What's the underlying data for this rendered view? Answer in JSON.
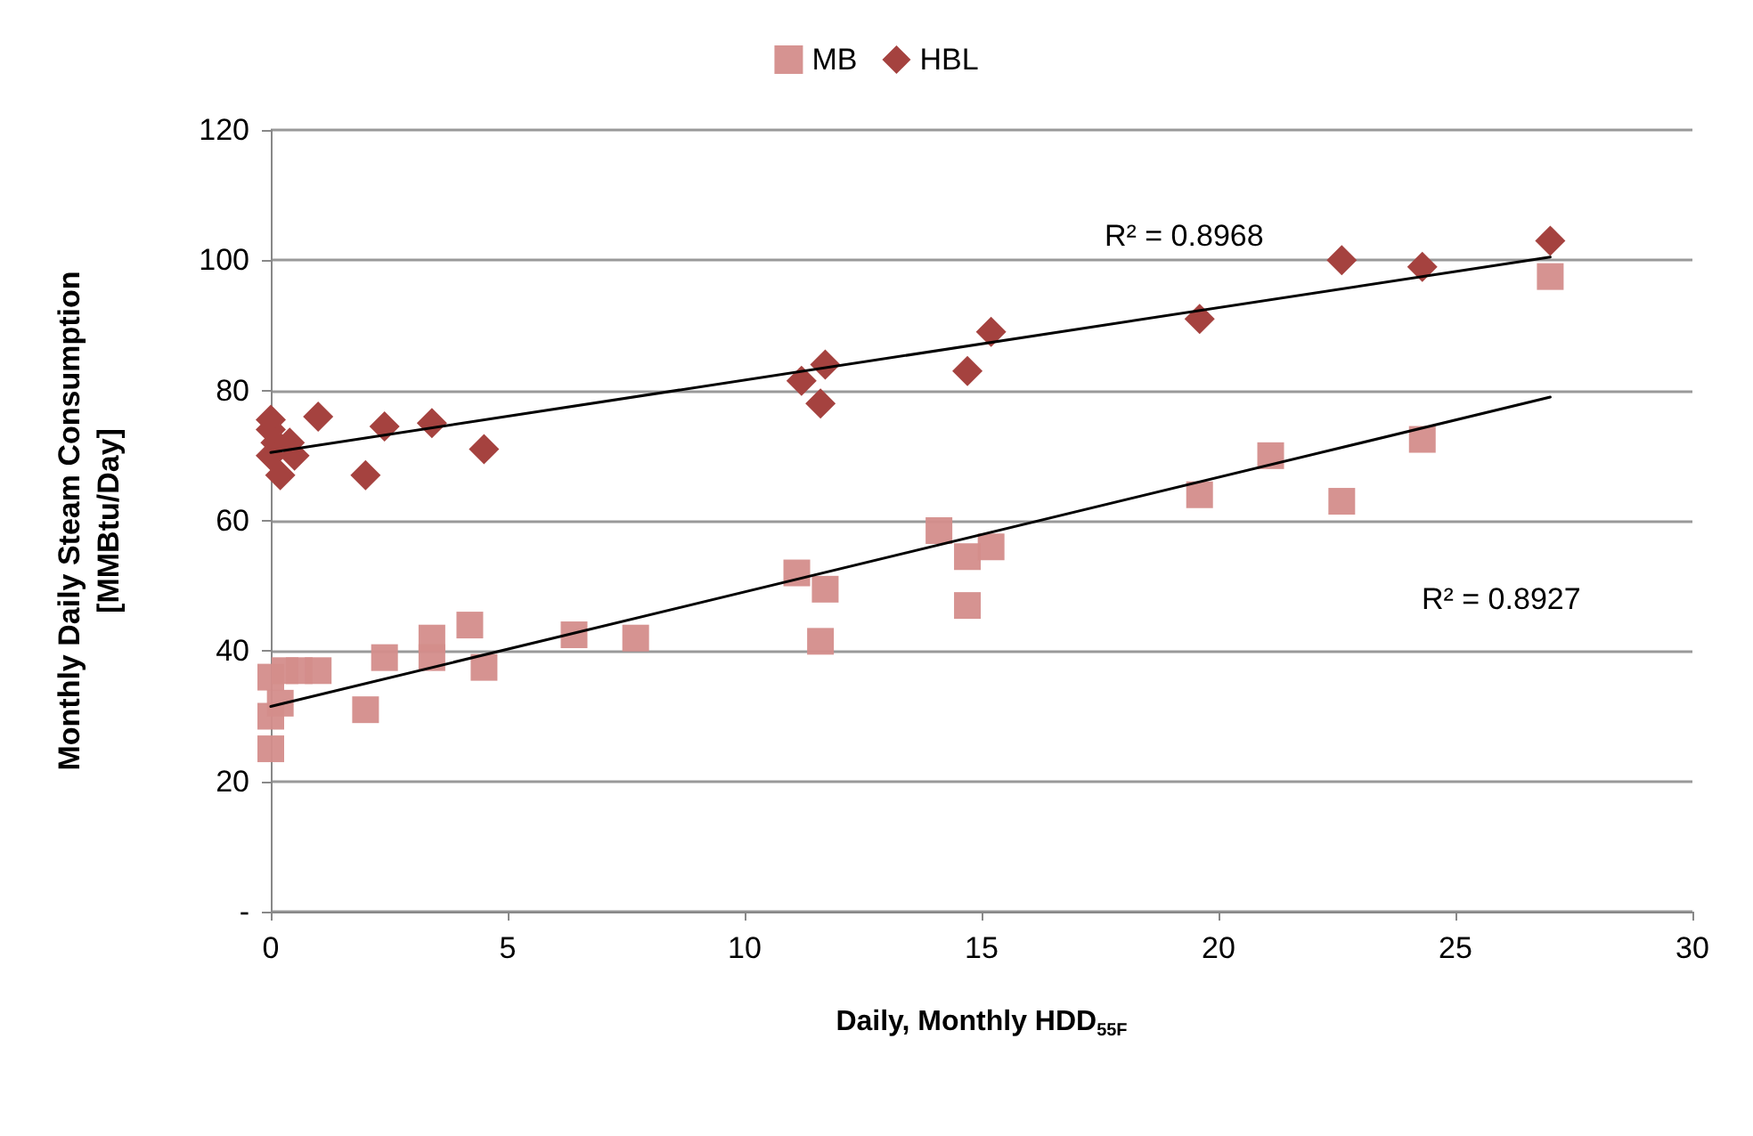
{
  "chart_data": {
    "type": "scatter",
    "xlabel": "Daily, Monthly HDD$_{55F}$",
    "ylabel": "Monthly Daily Steam Consumption\n[MMBtu/Day]",
    "xlim": [
      0,
      30
    ],
    "xticks": [
      0,
      5,
      10,
      15,
      20,
      25,
      30
    ],
    "ylim": [
      0,
      120
    ],
    "yticks": [
      {
        "value": 0,
        "label": "-"
      },
      20,
      40,
      60,
      80,
      100,
      120
    ],
    "grid": "y",
    "legend": "top",
    "series": [
      {
        "name": "MB",
        "color": "#d48d8b",
        "marker": "square",
        "x": [
          0,
          0,
          0,
          0.2,
          0.3,
          0.6,
          1,
          2,
          2.4,
          3.4,
          3.4,
          4.2,
          4.5,
          6.4,
          7.7,
          11.1,
          11.6,
          11.7,
          14.1,
          14.7,
          14.7,
          15.2,
          19.6,
          21.1,
          22.6,
          24.3,
          27
        ],
        "values": [
          25,
          30,
          36,
          32,
          37,
          37,
          37,
          31,
          39,
          42,
          39,
          44,
          37.5,
          42.5,
          42,
          52,
          41.5,
          49.5,
          58.5,
          54.5,
          47,
          56,
          64,
          70,
          63,
          72.5,
          97.5
        ]
      },
      {
        "name": "HBL",
        "color": "#a5423f",
        "marker": "diamond",
        "x": [
          0,
          0,
          0,
          0.1,
          0.2,
          0.4,
          0.5,
          1,
          2,
          2.4,
          3.4,
          4.5,
          11.2,
          11.6,
          11.7,
          14.7,
          15.2,
          19.6,
          22.6,
          24.3,
          27
        ],
        "values": [
          75.5,
          74,
          70,
          72,
          67,
          72,
          70,
          76,
          67,
          74.5,
          75,
          71,
          81.5,
          78,
          84,
          83,
          89,
          91,
          100,
          99,
          103
        ]
      },
      {
        "type": "line",
        "color": "#000000",
        "marker": "none",
        "x": [
          0,
          27
        ],
        "values": [
          70.5,
          100.5
        ]
      },
      {
        "type": "line",
        "color": "#000000",
        "marker": "none",
        "x": [
          0,
          27
        ],
        "values": [
          31.5,
          79
        ]
      }
    ],
    "annotations": [
      "R² = 0.8968",
      "R² = 0.8927"
    ]
  }
}
